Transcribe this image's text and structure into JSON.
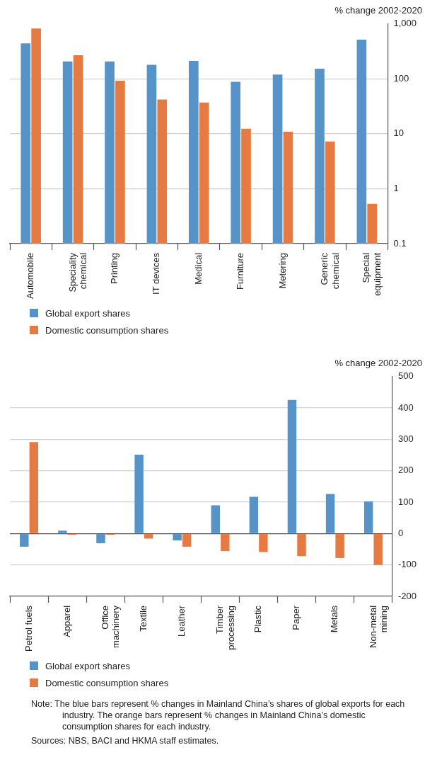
{
  "chart_data": [
    {
      "type": "bar",
      "ylabel": "% change 2002-2020",
      "log": true,
      "categories": [
        "Automobile",
        "Speciality chemical",
        "Printing",
        "IT devices",
        "Medical",
        "Furniture",
        "Metering",
        "Generic chemical",
        "Special equipment"
      ],
      "series": [
        {
          "name": "Global export shares",
          "color": "#5593c8",
          "values": [
            440,
            206,
            206,
            180,
            211,
            88,
            119,
            152,
            514
          ]
        },
        {
          "name": "Domestic consumption shares",
          "color": "#e57a43",
          "values": [
            820,
            267,
            92,
            42,
            37,
            12.3,
            10.9,
            7.2,
            0.53
          ]
        }
      ],
      "ylim": [
        0.1,
        1000
      ],
      "yticks": [
        0.1,
        1,
        10,
        100,
        {
          "value": 1000,
          "label": "1,000"
        }
      ],
      "grid": "y",
      "legend": "bottom"
    },
    {
      "type": "bar",
      "ylabel": "% change 2002-2020",
      "categories": [
        "Petrol fuels",
        "Apparel",
        "Office machinery",
        "Textile",
        "Leather",
        "Timber processing",
        "Plastic",
        "Paper",
        "Metals",
        "Non-metal mining"
      ],
      "series": [
        {
          "name": "Global export shares",
          "color": "#5593c8",
          "values": [
            -42,
            9,
            -31,
            251,
            -22,
            90,
            117,
            425,
            126,
            102
          ]
        },
        {
          "name": "Domestic consumption shares",
          "color": "#e57a43",
          "values": [
            291,
            -4,
            -4,
            -16,
            -42,
            -56,
            -59,
            -72,
            -78,
            -100
          ]
        }
      ],
      "ylim": [
        -200,
        500
      ],
      "yticks": [
        -200,
        -100,
        0,
        100,
        200,
        300,
        400,
        500
      ],
      "grid": "y",
      "legend": "bottom",
      "annotations": [
        "Note: The blue bars represent % changes in Mainland China’s shares of global exports for each industry.  The orange bars represent % changes in Mainland China’s domestic consumption shares for each industry.",
        "Sources: NBS, BACI and HKMA staff estimates."
      ]
    }
  ]
}
